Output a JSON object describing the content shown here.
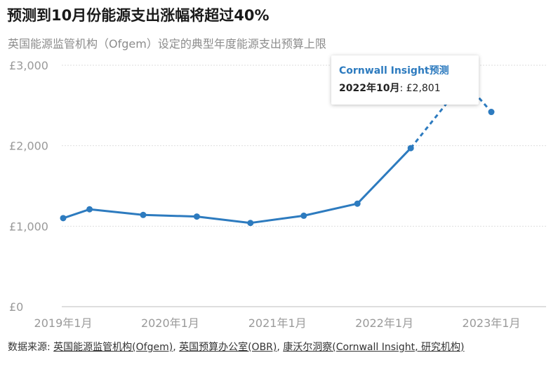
{
  "title": "预测到10月份能源支出涨幅将超过40%",
  "subtitle": "英国能源监管机构（Ofgem）设定的典型年度能源支出预算上限",
  "chart_data": {
    "type": "line",
    "title": "预测到10月份能源支出涨幅将超过40%",
    "subtitle": "英国能源监管机构（Ofgem）设定的典型年度能源支出预算上限",
    "xlabel": "",
    "ylabel": "",
    "y_ticks": [
      "£0",
      "£1,000",
      "£2,000",
      "£3,000"
    ],
    "y_tick_values": [
      0,
      1000,
      2000,
      3000
    ],
    "ylim": [
      0,
      3000
    ],
    "x_ticks": [
      "2019年1月",
      "2020年1月",
      "2021年1月",
      "2022年1月",
      "2023年1月"
    ],
    "x_tick_values": [
      "2019-01",
      "2020-01",
      "2021-01",
      "2022-01",
      "2023-01"
    ],
    "grid": true,
    "series": [
      {
        "style": "solid",
        "color": "#2d7bbf",
        "x": [
          "2019-01",
          "2019-04",
          "2019-10",
          "2020-04",
          "2020-10",
          "2021-04",
          "2021-10",
          "2022-04"
        ],
        "values": [
          1100,
          1210,
          1140,
          1120,
          1040,
          1130,
          1280,
          1970
        ]
      },
      {
        "style": "dashed",
        "color": "#2d7bbf",
        "x": [
          "2022-04",
          "2022-10",
          "2023-01"
        ],
        "values": [
          1970,
          2801,
          2420
        ]
      }
    ],
    "annotation": {
      "title": "Cornwall Insight预测",
      "date_label": "2022年10月",
      "value_label": "£2,801"
    }
  },
  "source": {
    "prefix": "数据来源: ",
    "links": [
      "英国能源监管机构(Ofgem)",
      "英国预算办公室(OBR)",
      "康沃尔洞察(Cornwall Insight, 研究机构)"
    ],
    "separator": ", "
  }
}
